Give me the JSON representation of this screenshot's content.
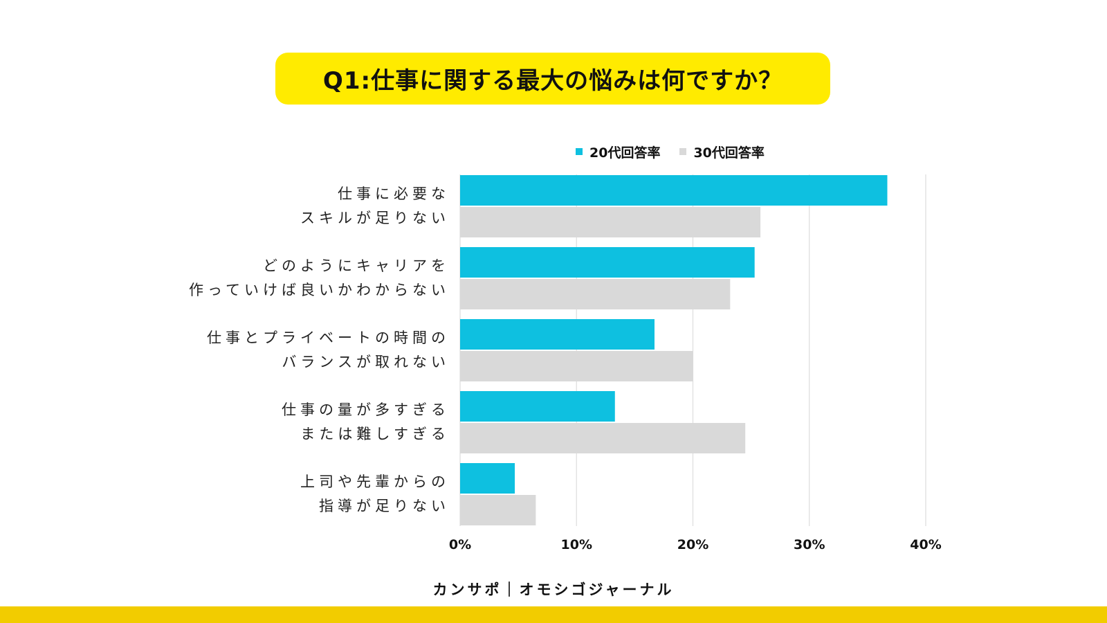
{
  "colors": {
    "title_bg": "#FFEB00",
    "series_20s": "#0EC0E0",
    "series_30s": "#D9D9D9",
    "grid": "#DDDDDD",
    "footer_bar": "#F2CC00"
  },
  "chart_data": {
    "type": "bar",
    "orientation": "horizontal",
    "title": "Q1:仕事に関する最大の悩みは何ですか？",
    "categories": [
      [
        "仕事に必要な",
        "スキルが足りない"
      ],
      [
        "どのようにキャリアを",
        "作っていけば良いかわからない"
      ],
      [
        "仕事とプライベートの時間の",
        "バランスが取れない"
      ],
      [
        "仕事の量が多すぎる",
        "または難しすぎる"
      ],
      [
        "上司や先輩からの",
        "指導が足りない"
      ]
    ],
    "series": [
      {
        "name": "20代回答率",
        "values": [
          36.7,
          25.3,
          16.7,
          13.3,
          4.7
        ]
      },
      {
        "name": "30代回答率",
        "values": [
          25.8,
          23.2,
          20.0,
          24.5,
          6.5
        ]
      }
    ],
    "xlim": [
      0,
      40
    ],
    "xticks": [
      "0%",
      "10%",
      "20%",
      "30%",
      "40%"
    ],
    "grid": true,
    "legend_position": "top"
  },
  "footer": {
    "text": "カンサポ｜オモシゴジャーナル"
  }
}
